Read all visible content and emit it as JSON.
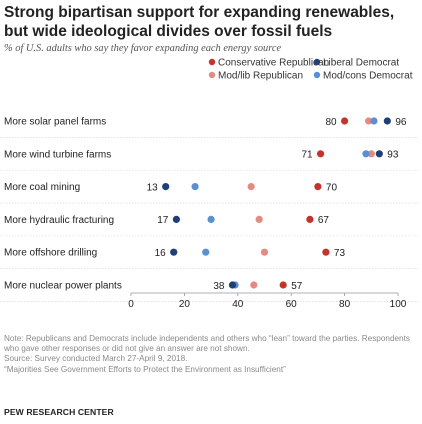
{
  "title": "Strong bipartisan support for expanding renewables, but wide ideological divides over fossil fuels",
  "subtitle": "% of U.S. adults who say they favor expanding each energy source",
  "notes": {
    "note": "Note: Republicans and Democrats include independents and others who “lean” toward the parties. Respondents who gave other responses or did not give an answer are not shown.",
    "source": "Source: Survey conducted March 27-April 9, 2018.",
    "report": "“Majorities See Government Efforts to Protect the Environment as Insufficient”"
  },
  "brand": "PEW RESEARCH CENTER",
  "chart_data": {
    "type": "dot-plot",
    "xlim": [
      0,
      100
    ],
    "x_ticks": [
      "0",
      "20",
      "40",
      "60",
      "80",
      "100"
    ],
    "legend_position": "top-right",
    "legend": [
      {
        "name": "Conservative Republican",
        "color": "#c4342d"
      },
      {
        "name": "Liberal Democrat",
        "color": "#1f3f76"
      },
      {
        "name": "Mod/lib Republican",
        "color": "#e48a80"
      },
      {
        "name": "Mod/cons Democrat",
        "color": "#5a8fd1"
      }
    ],
    "categories": [
      "More solar panel farms",
      "More wind turbine farms",
      "More coal mining",
      "More hydraulic fracturing",
      "More offshore drilling",
      "More nuclear power plants"
    ],
    "series": [
      {
        "name": "Conservative Republican",
        "values": [
          80,
          71,
          70,
          67,
          73,
          57
        ]
      },
      {
        "name": "Mod/lib Republican",
        "values": [
          89,
          90,
          45,
          48,
          50,
          46
        ]
      },
      {
        "name": "Mod/cons Democrat",
        "values": [
          91,
          88,
          24,
          30,
          28,
          39
        ]
      },
      {
        "name": "Liberal Democrat",
        "values": [
          96,
          93,
          13,
          17,
          16,
          38
        ]
      }
    ],
    "labeled_values": [
      {
        "low": "80",
        "high": "96"
      },
      {
        "low": "71",
        "high": "93"
      },
      {
        "low": "13",
        "high": "70"
      },
      {
        "low": "17",
        "high": "67"
      },
      {
        "low": "16",
        "high": "73"
      },
      {
        "low": "38",
        "high": "57"
      }
    ]
  }
}
